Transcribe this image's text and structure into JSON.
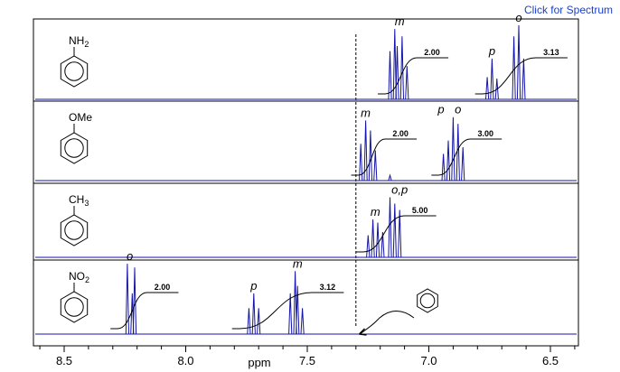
{
  "link": {
    "label": "Click for Spectrum"
  },
  "chart_data": {
    "type": "line",
    "xlabel": "ppm",
    "xlim": [
      8.62,
      6.38
    ],
    "x_ticks": [
      "8.5",
      "8.0",
      "7.5",
      "7.0",
      "6.5"
    ],
    "x_tick_values": [
      8.5,
      8.0,
      7.5,
      7.0,
      6.5
    ],
    "reference_line_ppm": 7.3,
    "panels": [
      {
        "compound": "aniline",
        "substituent": "NH2",
        "substituent_base": "NH",
        "substituent_sub": "2",
        "peaks": [
          {
            "ppm": 7.16,
            "h": 0.65
          },
          {
            "ppm": 7.14,
            "h": 0.95
          },
          {
            "ppm": 7.13,
            "h": 0.72
          },
          {
            "ppm": 7.11,
            "h": 0.85
          },
          {
            "ppm": 7.09,
            "h": 0.45
          },
          {
            "ppm": 6.76,
            "h": 0.3
          },
          {
            "ppm": 6.74,
            "h": 0.55
          },
          {
            "ppm": 6.72,
            "h": 0.28
          },
          {
            "ppm": 6.65,
            "h": 0.85
          },
          {
            "ppm": 6.63,
            "h": 1.0
          },
          {
            "ppm": 6.61,
            "h": 0.55
          }
        ],
        "labels": [
          {
            "text": "m",
            "ppm": 7.12,
            "italic": true
          },
          {
            "text": "p",
            "ppm": 6.74,
            "italic": true
          },
          {
            "text": "o",
            "ppm": 6.63,
            "italic": true
          }
        ],
        "integrals": [
          {
            "from": 7.18,
            "to": 7.05,
            "value": "2.00"
          },
          {
            "from": 6.78,
            "to": 6.56,
            "value": "3.13"
          }
        ]
      },
      {
        "compound": "anisole",
        "substituent": "OMe",
        "substituent_base": "OMe",
        "substituent_sub": "",
        "peaks": [
          {
            "ppm": 7.28,
            "h": 0.55
          },
          {
            "ppm": 7.26,
            "h": 0.9
          },
          {
            "ppm": 7.24,
            "h": 0.75
          },
          {
            "ppm": 7.22,
            "h": 0.45
          },
          {
            "ppm": 7.16,
            "h": 0.08
          },
          {
            "ppm": 6.94,
            "h": 0.4
          },
          {
            "ppm": 6.92,
            "h": 0.6
          },
          {
            "ppm": 6.9,
            "h": 0.95
          },
          {
            "ppm": 6.88,
            "h": 0.85
          },
          {
            "ppm": 6.86,
            "h": 0.5
          }
        ],
        "labels": [
          {
            "text": "m",
            "ppm": 7.26,
            "italic": true
          },
          {
            "text": "p",
            "ppm": 6.95,
            "italic": true
          },
          {
            "text": "o",
            "ppm": 6.88,
            "italic": true
          }
        ],
        "integrals": [
          {
            "from": 7.29,
            "to": 7.18,
            "value": "2.00"
          },
          {
            "from": 6.96,
            "to": 6.83,
            "value": "3.00"
          }
        ]
      },
      {
        "compound": "toluene",
        "substituent": "CH3",
        "substituent_base": "CH",
        "substituent_sub": "3",
        "peaks": [
          {
            "ppm": 7.25,
            "h": 0.35
          },
          {
            "ppm": 7.23,
            "h": 0.6
          },
          {
            "ppm": 7.21,
            "h": 0.55
          },
          {
            "ppm": 7.19,
            "h": 0.4
          },
          {
            "ppm": 7.16,
            "h": 0.95
          },
          {
            "ppm": 7.14,
            "h": 0.85
          },
          {
            "ppm": 7.12,
            "h": 0.75
          }
        ],
        "labels": [
          {
            "text": "m",
            "ppm": 7.22,
            "italic": true
          },
          {
            "text": "o,p",
            "ppm": 7.12,
            "italic": true
          }
        ],
        "integrals": [
          {
            "from": 7.27,
            "to": 7.1,
            "value": "5.00"
          }
        ]
      },
      {
        "compound": "nitrobenzene",
        "substituent": "NO2",
        "substituent_base": "NO",
        "substituent_sub": "2",
        "peaks": [
          {
            "ppm": 8.24,
            "h": 0.95
          },
          {
            "ppm": 8.22,
            "h": 0.55
          },
          {
            "ppm": 8.21,
            "h": 0.9
          },
          {
            "ppm": 7.74,
            "h": 0.35
          },
          {
            "ppm": 7.72,
            "h": 0.55
          },
          {
            "ppm": 7.7,
            "h": 0.35
          },
          {
            "ppm": 7.57,
            "h": 0.55
          },
          {
            "ppm": 7.55,
            "h": 0.85
          },
          {
            "ppm": 7.54,
            "h": 0.65
          },
          {
            "ppm": 7.52,
            "h": 0.35
          }
        ],
        "labels": [
          {
            "text": "o",
            "ppm": 8.23,
            "italic": true
          },
          {
            "text": "p",
            "ppm": 7.72,
            "italic": true
          },
          {
            "text": "m",
            "ppm": 7.54,
            "italic": true
          }
        ],
        "integrals": [
          {
            "from": 8.28,
            "to": 8.16,
            "value": "2.00"
          },
          {
            "from": 7.78,
            "to": 7.48,
            "value": "3.12"
          }
        ]
      }
    ],
    "benzene_marker_ppm": 7.29
  },
  "colors": {
    "trace": "#1414a8",
    "link": "#1a3fd0",
    "frame": "#000000",
    "integral": "#000000"
  }
}
